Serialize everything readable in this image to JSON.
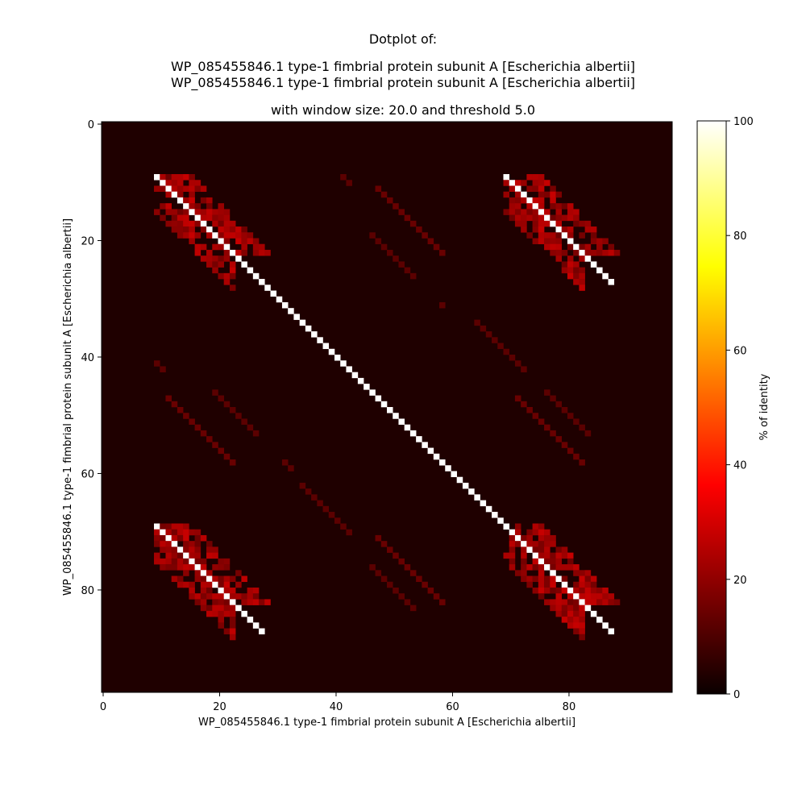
{
  "chart_data": {
    "type": "heatmap",
    "title": {
      "line1": "Dotplot of:",
      "line2": "WP_085455846.1 type-1 fimbrial protein subunit A [Escherichia albertii]",
      "line3": "WP_085455846.1 type-1 fimbrial protein subunit A [Escherichia albertii]",
      "line4": "with window size: 20.0 and threshold 5.0"
    },
    "xlabel": "WP_085455846.1 type-1 fimbrial protein subunit A [Escherichia albertii]",
    "ylabel": "WP_085455846.1 type-1 fimbrial protein subunit A [Escherichia albertii]",
    "colorbar_label": "% of identity",
    "size": 98,
    "xlim": [
      0,
      98
    ],
    "ylim": [
      98,
      0
    ],
    "x_ticks": [
      0,
      20,
      40,
      60,
      80
    ],
    "y_ticks": [
      0,
      20,
      40,
      60,
      80
    ],
    "colorbar_ticks": [
      0,
      20,
      40,
      60,
      80,
      100
    ],
    "colorbar_range": [
      0,
      100
    ],
    "colormap": "hot",
    "background_value": 3,
    "main_diagonal": {
      "start": 9,
      "end": 87,
      "value": 100
    },
    "repeat_diagonals": [
      {
        "x0": 69,
        "y0": 9,
        "len": 19,
        "value": 100
      },
      {
        "x0": 9,
        "y0": 69,
        "len": 19,
        "value": 100
      }
    ],
    "clusters": [
      {
        "cx0": 9,
        "cy0": 9,
        "size": 14,
        "dmin": 1,
        "dmax": 6,
        "low": 10,
        "high": 28
      },
      {
        "cx0": 69,
        "cy0": 9,
        "size": 14,
        "dmin": 1,
        "dmax": 6,
        "low": 10,
        "high": 28
      },
      {
        "cx0": 9,
        "cy0": 69,
        "size": 14,
        "dmin": 1,
        "dmax": 6,
        "low": 10,
        "high": 28
      },
      {
        "cx0": 69,
        "cy0": 69,
        "size": 14,
        "dmin": 1,
        "dmax": 6,
        "low": 10,
        "high": 28
      }
    ],
    "faint_diagonals": [
      {
        "x0": 47,
        "y0": 11,
        "len": 12,
        "value": 14
      },
      {
        "x0": 46,
        "y0": 19,
        "len": 8,
        "value": 12
      },
      {
        "x0": 41,
        "y0": 9,
        "len": 2,
        "value": 12
      },
      {
        "x0": 11,
        "y0": 47,
        "len": 12,
        "value": 14
      },
      {
        "x0": 19,
        "y0": 46,
        "len": 8,
        "value": 12
      },
      {
        "x0": 9,
        "y0": 41,
        "len": 2,
        "value": 12
      },
      {
        "x0": 71,
        "y0": 47,
        "len": 12,
        "value": 14
      },
      {
        "x0": 76,
        "y0": 46,
        "len": 8,
        "value": 12
      },
      {
        "x0": 47,
        "y0": 71,
        "len": 12,
        "value": 14
      },
      {
        "x0": 46,
        "y0": 76,
        "len": 8,
        "value": 12
      },
      {
        "x0": 64,
        "y0": 34,
        "len": 9,
        "value": 12
      },
      {
        "x0": 34,
        "y0": 62,
        "len": 9,
        "value": 12
      },
      {
        "x0": 58,
        "y0": 31,
        "len": 1,
        "value": 12
      },
      {
        "x0": 31,
        "y0": 58,
        "len": 2,
        "value": 12
      }
    ]
  }
}
